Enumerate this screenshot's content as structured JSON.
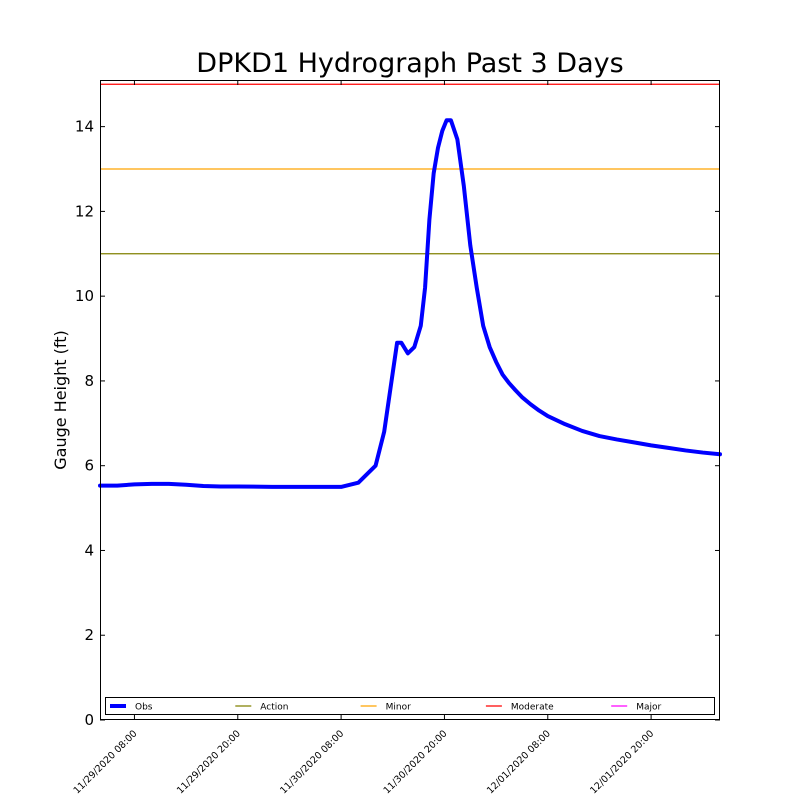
{
  "chart_data": {
    "type": "line",
    "title": "DPKD1 Hydrograph Past 3 Days",
    "xlabel": "",
    "ylabel": "Gauge Height (ft)",
    "ylim": [
      0,
      15.1
    ],
    "xlim": [
      "11/29/2020 04:00",
      "12/02/2020 04:00"
    ],
    "yticks": [
      "0",
      "2",
      "4",
      "6",
      "8",
      "10",
      "12",
      "14"
    ],
    "xticks": [
      "11/29/2020 08:00",
      "11/29/2020 20:00",
      "11/30/2020 08:00",
      "11/30/2020 20:00",
      "12/01/2020 08:00",
      "12/01/2020 20:00"
    ],
    "grid": false,
    "legend_position": "bottom",
    "thresholds": [
      {
        "name": "Action",
        "value": 11.0,
        "color": "#808000"
      },
      {
        "name": "Minor",
        "value": 13.0,
        "color": "#ffa500"
      },
      {
        "name": "Moderate",
        "value": 15.0,
        "color": "#ff0000"
      },
      {
        "name": "Major",
        "value": null,
        "color": "#ff00ff"
      }
    ],
    "series": [
      {
        "name": "Obs",
        "color": "#0000ff",
        "x": [
          "11/29/2020 04:00",
          "11/29/2020 06:00",
          "11/29/2020 08:00",
          "11/29/2020 10:00",
          "11/29/2020 12:00",
          "11/29/2020 14:00",
          "11/29/2020 16:00",
          "11/29/2020 18:00",
          "11/29/2020 20:00",
          "11/30/2020 00:00",
          "11/30/2020 04:00",
          "11/30/2020 08:00",
          "11/30/2020 10:00",
          "11/30/2020 12:00",
          "11/30/2020 13:00",
          "11/30/2020 14:00",
          "11/30/2020 14:30",
          "11/30/2020 15:00",
          "11/30/2020 15:45",
          "11/30/2020 16:30",
          "11/30/2020 17:15",
          "11/30/2020 17:45",
          "11/30/2020 18:15",
          "11/30/2020 18:45",
          "11/30/2020 19:15",
          "11/30/2020 19:45",
          "11/30/2020 20:15",
          "11/30/2020 20:45",
          "11/30/2020 21:30",
          "11/30/2020 22:15",
          "11/30/2020 23:00",
          "11/30/2020 23:45",
          "12/01/2020 00:30",
          "12/01/2020 01:15",
          "12/01/2020 02:00",
          "12/01/2020 02:45",
          "12/01/2020 03:30",
          "12/01/2020 04:15",
          "12/01/2020 05:00",
          "12/01/2020 06:00",
          "12/01/2020 07:00",
          "12/01/2020 08:00",
          "12/01/2020 10:00",
          "12/01/2020 12:00",
          "12/01/2020 14:00",
          "12/01/2020 16:00",
          "12/01/2020 18:00",
          "12/01/2020 20:00",
          "12/01/2020 22:00",
          "12/02/2020 00:00",
          "12/02/2020 02:00",
          "12/02/2020 04:00"
        ],
        "y": [
          5.53,
          5.53,
          5.56,
          5.57,
          5.57,
          5.55,
          5.52,
          5.51,
          5.51,
          5.5,
          5.5,
          5.5,
          5.6,
          6.0,
          6.8,
          8.2,
          8.9,
          8.9,
          8.65,
          8.8,
          9.3,
          10.2,
          11.8,
          12.9,
          13.5,
          13.9,
          14.15,
          14.15,
          13.7,
          12.6,
          11.2,
          10.2,
          9.3,
          8.8,
          8.45,
          8.15,
          7.95,
          7.78,
          7.62,
          7.45,
          7.3,
          7.17,
          6.98,
          6.82,
          6.7,
          6.62,
          6.55,
          6.48,
          6.42,
          6.36,
          6.31,
          6.27
        ]
      }
    ]
  }
}
